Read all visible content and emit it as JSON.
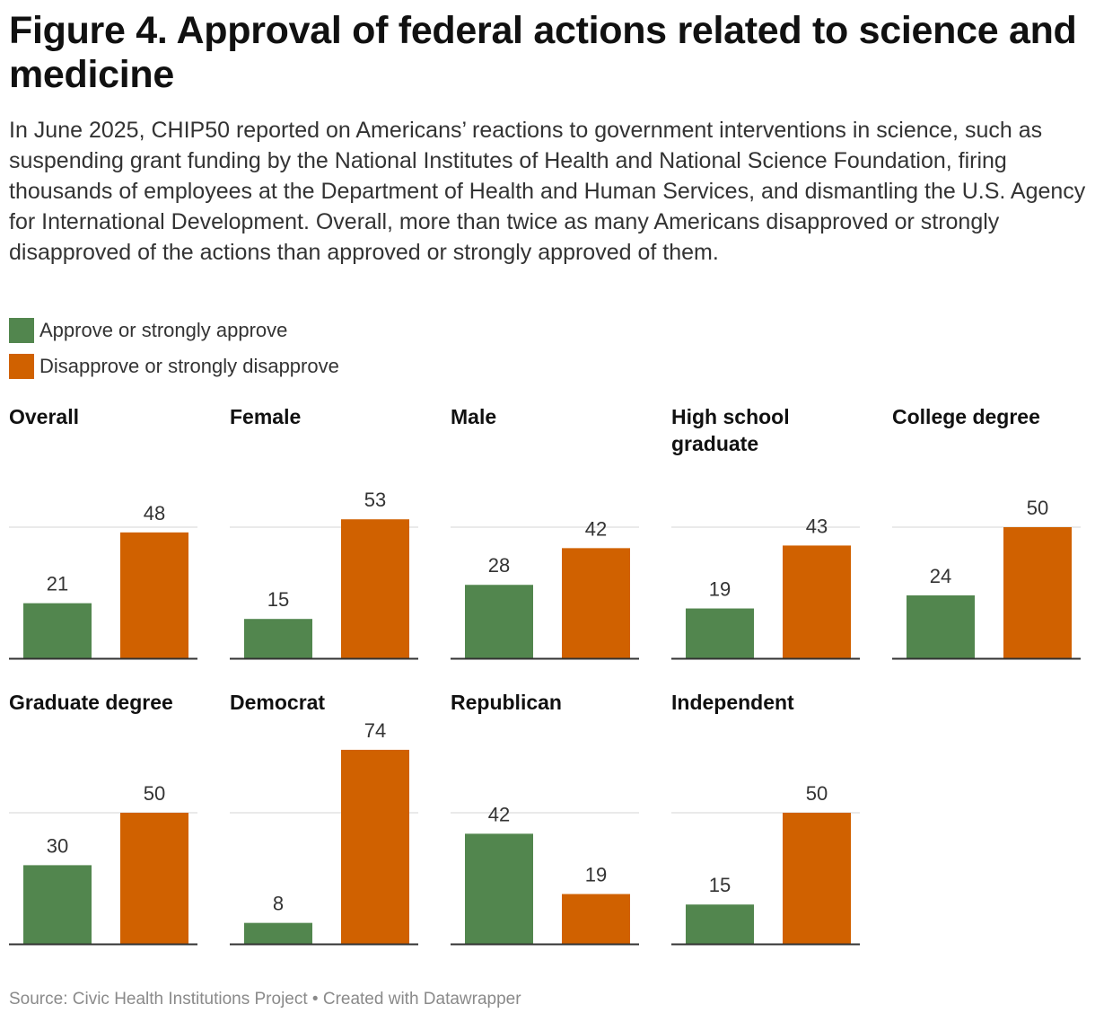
{
  "title": "Figure 4. Approval of federal actions related to science and medicine",
  "subtitle": "In June 2025, CHIP50 reported on Americans’ reactions to government interventions in science, such as suspending grant funding by the National Institutes of Health and National Science Foundation, firing thousands of employees at the Department of Health and Human Services, and dismantling the U.S. Agency for International Development. Overall, more than twice as many Americans disapproved or strongly disapproved of the actions than approved or strongly approved of them.",
  "legend": [
    {
      "label": "Approve or strongly approve",
      "color": "#52864e"
    },
    {
      "label": "Disapprove or strongly disapprove",
      "color": "#d06100"
    }
  ],
  "source": "Source: Civic Health Institutions Project • Created with Datawrapper",
  "colors": {
    "approve": "#52864e",
    "disapprove": "#d06100",
    "gridline": "#e3e3e3",
    "baseline": "#333333"
  },
  "chart_data": {
    "type": "bar",
    "layout": "small-multiples",
    "grid": true,
    "legend_position": "top-left",
    "ylim": [
      0,
      100
    ],
    "categories": [
      "Approve or strongly approve",
      "Disapprove or strongly disapprove"
    ],
    "panels": [
      {
        "title": [
          "Overall"
        ],
        "values": [
          21,
          48
        ]
      },
      {
        "title": [
          "Female"
        ],
        "values": [
          15,
          53
        ]
      },
      {
        "title": [
          "Male"
        ],
        "values": [
          28,
          42
        ]
      },
      {
        "title": [
          "High school",
          "graduate"
        ],
        "values": [
          19,
          43
        ]
      },
      {
        "title": [
          "College degree"
        ],
        "values": [
          24,
          50
        ]
      },
      {
        "title": [
          "Graduate degree"
        ],
        "values": [
          30,
          50
        ]
      },
      {
        "title": [
          "Democrat"
        ],
        "values": [
          8,
          74
        ]
      },
      {
        "title": [
          "Republican"
        ],
        "values": [
          42,
          19
        ]
      },
      {
        "title": [
          "Independent"
        ],
        "values": [
          15,
          50
        ]
      }
    ]
  }
}
